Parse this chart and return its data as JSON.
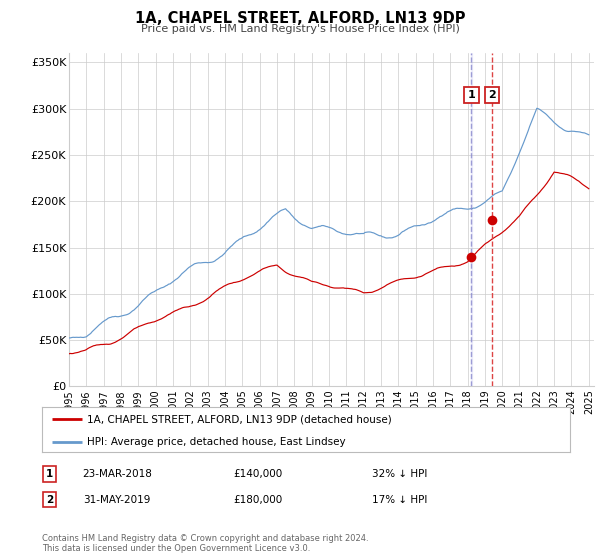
{
  "title": "1A, CHAPEL STREET, ALFORD, LN13 9DP",
  "subtitle": "Price paid vs. HM Land Registry's House Price Index (HPI)",
  "ylabel_ticks": [
    "£0",
    "£50K",
    "£100K",
    "£150K",
    "£200K",
    "£250K",
    "£300K",
    "£350K"
  ],
  "ytick_values": [
    0,
    50000,
    100000,
    150000,
    200000,
    250000,
    300000,
    350000
  ],
  "ylim": [
    0,
    360000
  ],
  "xlim_start": 1995.0,
  "xlim_end": 2025.3,
  "legend_label_red": "1A, CHAPEL STREET, ALFORD, LN13 9DP (detached house)",
  "legend_label_blue": "HPI: Average price, detached house, East Lindsey",
  "sale1_date": 2018.22,
  "sale1_price": 140000,
  "sale1_label": "1",
  "sale1_text": "23-MAR-2018",
  "sale1_amount": "£140,000",
  "sale1_hpi": "32% ↓ HPI",
  "sale2_date": 2019.41,
  "sale2_price": 180000,
  "sale2_label": "2",
  "sale2_text": "31-MAY-2019",
  "sale2_amount": "£180,000",
  "sale2_hpi": "17% ↓ HPI",
  "red_color": "#cc0000",
  "blue_color": "#6699cc",
  "vline1_color": "#aaaaee",
  "vline2_color": "#dd4444",
  "grid_color": "#cccccc",
  "bg_color": "#ffffff",
  "footer_line1": "Contains HM Land Registry data © Crown copyright and database right 2024.",
  "footer_line2": "This data is licensed under the Open Government Licence v3.0."
}
